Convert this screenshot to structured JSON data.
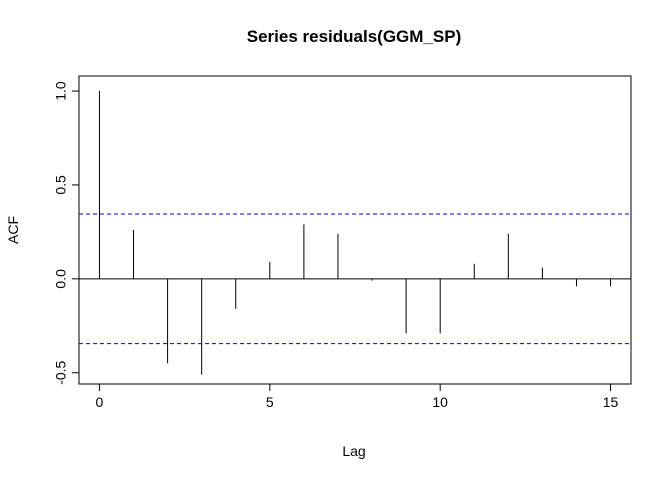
{
  "chart_data": {
    "type": "bar",
    "title": "Series  residuals(GGM_SP)",
    "xlabel": "Lag",
    "ylabel": "ACF",
    "x": [
      0,
      1,
      2,
      3,
      4,
      5,
      6,
      7,
      8,
      9,
      10,
      11,
      12,
      13,
      14,
      15
    ],
    "values": [
      1.0,
      0.26,
      -0.45,
      -0.51,
      -0.16,
      0.09,
      0.29,
      0.24,
      -0.01,
      -0.29,
      -0.29,
      0.08,
      0.24,
      0.06,
      -0.04,
      -0.04
    ],
    "confidence_band": 0.345,
    "confidence_color": "#0000cc",
    "xlim": [
      -0.6,
      15.6
    ],
    "ylim": [
      -0.56,
      1.08
    ],
    "xticks": [
      0,
      5,
      10,
      15
    ],
    "yticks": [
      -0.5,
      0.0,
      0.5,
      1.0
    ],
    "xtick_labels": [
      "0",
      "5",
      "10",
      "15"
    ],
    "ytick_labels": [
      "-0.5",
      "0.0",
      "0.5",
      "1.0"
    ],
    "grid": false,
    "legend": "none"
  }
}
